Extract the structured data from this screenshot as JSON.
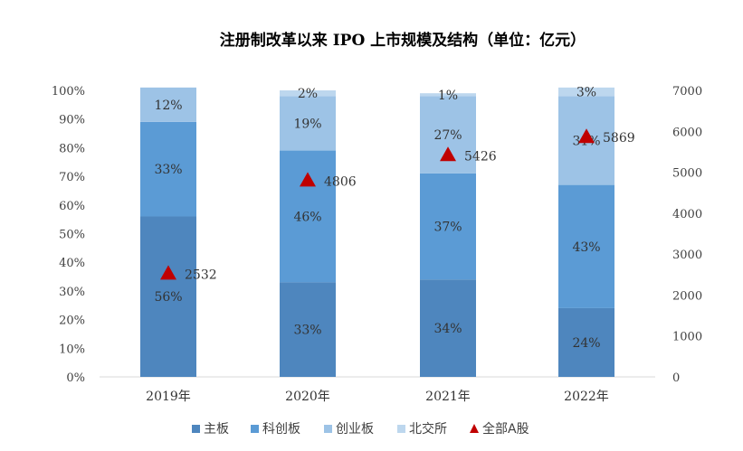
{
  "chart_data": {
    "type": "bar",
    "stacked": "percent",
    "title": "注册制改革以来 IPO 上市规模及结构（单位：亿元）",
    "categories": [
      "2019年",
      "2020年",
      "2021年",
      "2022年"
    ],
    "series": [
      {
        "name": "主板",
        "values": [
          56,
          33,
          34,
          24
        ],
        "labels": [
          "56%",
          "33%",
          "34%",
          "24%"
        ],
        "color": "#4E86BE"
      },
      {
        "name": "科创板",
        "values": [
          33,
          46,
          37,
          43
        ],
        "labels": [
          "33%",
          "46%",
          "37%",
          "43%"
        ],
        "color": "#5B9BD5"
      },
      {
        "name": "创业板",
        "values": [
          12,
          19,
          27,
          31
        ],
        "labels": [
          "12%",
          "19%",
          "27%",
          "31%"
        ],
        "color": "#9DC3E6"
      },
      {
        "name": "北交所",
        "values": [
          0,
          2,
          1,
          3
        ],
        "labels": [
          "",
          "2%",
          "1%",
          "3%"
        ],
        "color": "#BDD7EE"
      }
    ],
    "line_series": {
      "name": "全部A股",
      "marker": "triangle",
      "color": "#C00000",
      "axis": "right",
      "values": [
        2532,
        4806,
        5426,
        5869
      ],
      "labels": [
        "2532",
        "4806",
        "5426",
        "5869"
      ]
    },
    "left_axis": {
      "ylim": [
        0,
        100
      ],
      "ticks": [
        "0%",
        "10%",
        "20%",
        "30%",
        "40%",
        "50%",
        "60%",
        "70%",
        "80%",
        "90%",
        "100%"
      ]
    },
    "right_axis": {
      "ylim": [
        0,
        7000
      ],
      "ticks": [
        "0",
        "1000",
        "2000",
        "3000",
        "4000",
        "5000",
        "6000",
        "7000"
      ]
    },
    "legend_position": "bottom",
    "grid": false
  }
}
